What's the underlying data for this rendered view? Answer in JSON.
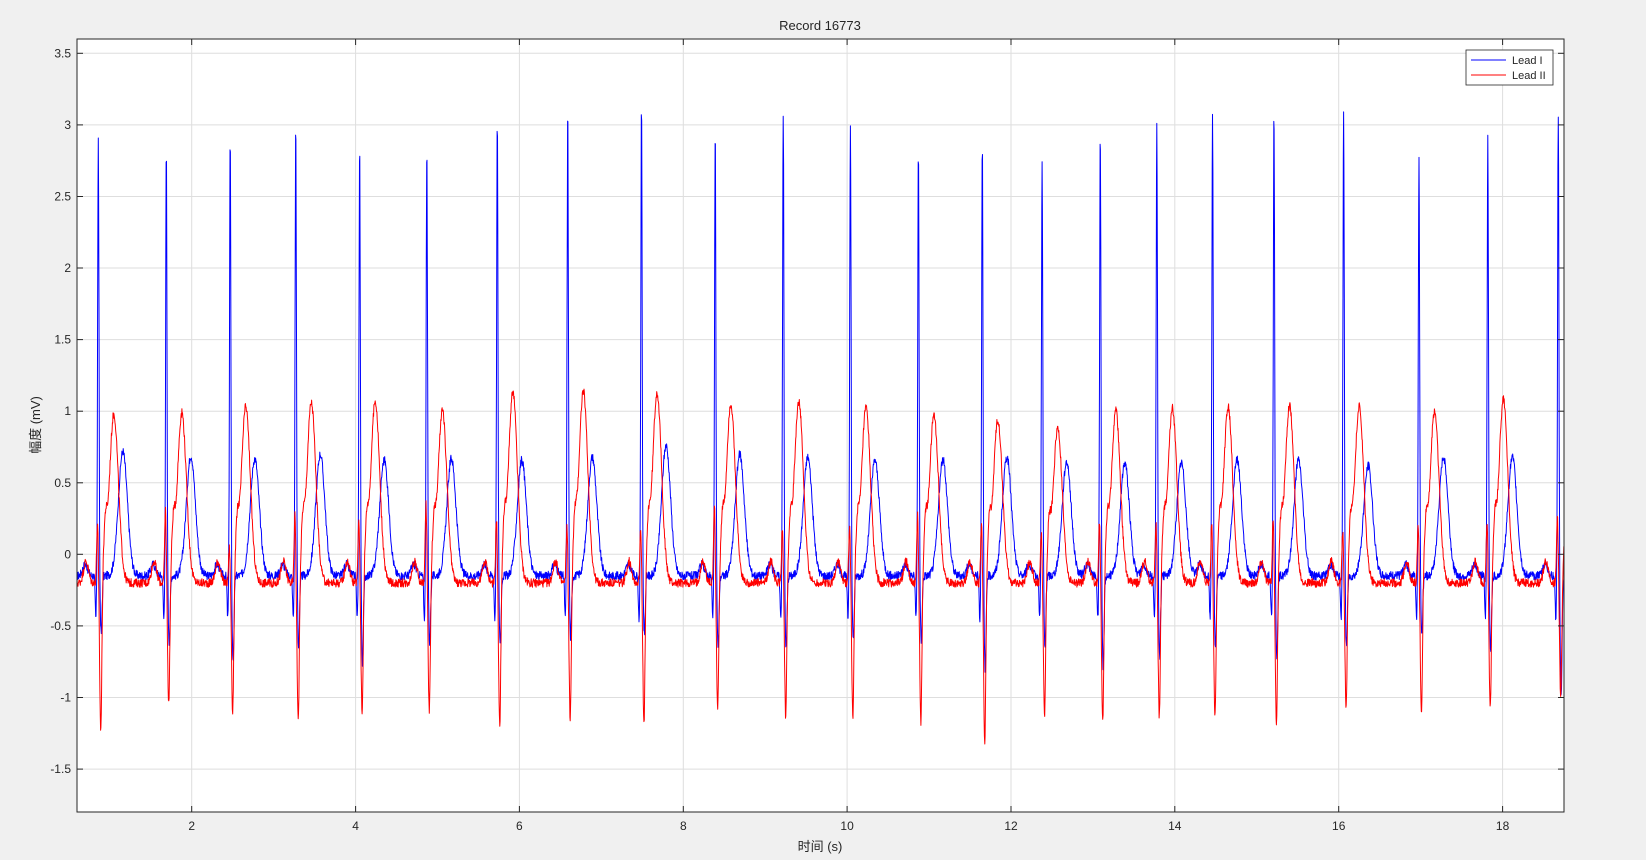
{
  "chart_data": {
    "type": "line",
    "title": "Record 16773",
    "xlabel": "时间 (s)",
    "ylabel": "幅度 (mV)",
    "xlim": [
      0.6,
      18.75
    ],
    "ylim": [
      -1.8,
      3.6
    ],
    "xticks": [
      2,
      4,
      6,
      8,
      10,
      12,
      14,
      16,
      18
    ],
    "yticks": [
      -1.5,
      -1,
      -0.5,
      0,
      0.5,
      1,
      1.5,
      2,
      2.5,
      3,
      3.5
    ],
    "ytick_labels": [
      "-1.5",
      "-1",
      "-0.5",
      "0",
      "0.5",
      "1",
      "1.5",
      "2",
      "2.5",
      "3",
      "3.5"
    ],
    "grid": true,
    "legend_position": "top-right",
    "series": [
      {
        "name": "Lead I",
        "color": "#0000ff",
        "beat_times": [
          0.86,
          1.69,
          2.47,
          3.27,
          4.05,
          4.87,
          5.73,
          6.59,
          7.49,
          8.39,
          9.22,
          10.04,
          10.87,
          11.65,
          12.38,
          13.09,
          13.78,
          14.46,
          15.21,
          16.06,
          16.98,
          17.82,
          18.68
        ],
        "r_peak": [
          2.9,
          2.82,
          2.91,
          3.03,
          2.87,
          2.83,
          3.03,
          3.11,
          3.15,
          2.94,
          3.09,
          3.02,
          2.84,
          2.88,
          2.75,
          2.94,
          3.0,
          3.08,
          3.1,
          3.12,
          2.8,
          2.93,
          3.08
        ],
        "s_trough": [
          -0.5,
          -0.57,
          -0.7,
          -0.6,
          -0.73,
          -0.57,
          -0.57,
          -0.53,
          -0.5,
          -0.6,
          -0.6,
          -0.55,
          -0.55,
          -0.78,
          -0.6,
          -0.76,
          -0.66,
          -0.6,
          -0.66,
          -0.6,
          -0.5,
          -0.62,
          -0.95
        ],
        "t_peak": [
          0.72,
          0.69,
          0.67,
          0.7,
          0.66,
          0.67,
          0.66,
          0.68,
          0.76,
          0.7,
          0.68,
          0.66,
          0.66,
          0.68,
          0.65,
          0.64,
          0.64,
          0.66,
          0.66,
          0.62,
          0.68,
          0.68,
          0.68
        ],
        "baseline": -0.15
      },
      {
        "name": "Lead II",
        "color": "#ff0000",
        "beat_times": [
          0.86,
          1.69,
          2.47,
          3.27,
          4.05,
          4.87,
          5.73,
          6.59,
          7.49,
          8.39,
          9.22,
          10.04,
          10.87,
          11.65,
          12.38,
          13.09,
          13.78,
          14.46,
          15.21,
          16.06,
          16.98,
          17.82,
          18.68
        ],
        "r_peak": [
          0.22,
          0.32,
          0.05,
          0.28,
          0.25,
          0.36,
          0.26,
          0.2,
          0.19,
          0.35,
          0.2,
          0.2,
          0.28,
          0.23,
          0.16,
          0.22,
          0.22,
          0.23,
          0.26,
          0.16,
          0.2,
          0.22,
          0.28
        ],
        "s_trough": [
          -1.25,
          -1.07,
          -1.13,
          -1.18,
          -1.12,
          -1.12,
          -1.22,
          -1.19,
          -1.22,
          -1.11,
          -1.15,
          -1.16,
          -1.19,
          -1.34,
          -1.15,
          -1.19,
          -1.16,
          -1.17,
          -1.19,
          -1.12,
          -1.13,
          -1.1,
          -1.0
        ],
        "t_peak": [
          0.98,
          0.99,
          1.03,
          1.06,
          1.07,
          1.0,
          1.13,
          1.14,
          1.13,
          1.05,
          1.07,
          1.02,
          0.97,
          0.94,
          0.88,
          1.0,
          1.02,
          1.03,
          1.04,
          1.03,
          1.0,
          1.08,
          0.25
        ],
        "baseline": -0.2
      }
    ]
  }
}
